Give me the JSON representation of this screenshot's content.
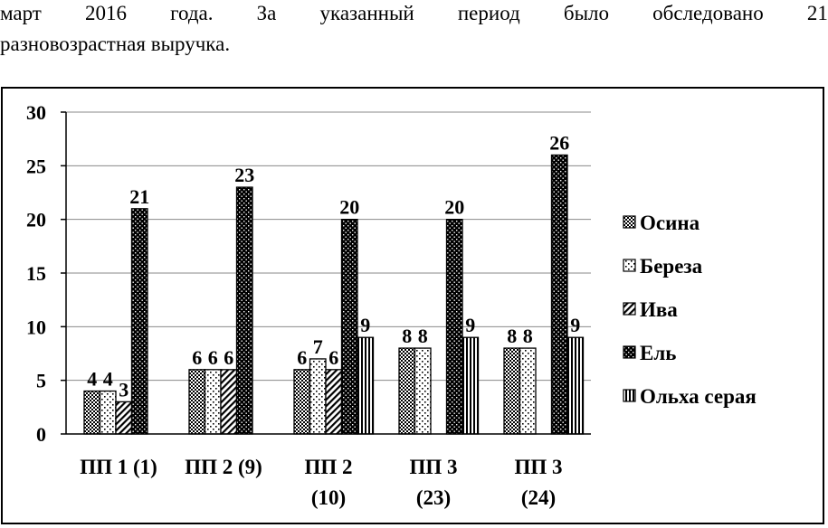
{
  "text": {
    "line1_words": [
      "март",
      "2016",
      "года.",
      "За",
      "указанный",
      "период",
      "было",
      "обследовано",
      "21"
    ],
    "line2": "разновозрастная выручка."
  },
  "chart_data": {
    "type": "bar",
    "categories": [
      "ПП 1 (1)",
      "ПП 2 (9)",
      "ПП 2 (10)",
      "ПП 3 (23)",
      "ПП 3 (24)"
    ],
    "category_lines": [
      [
        "ПП 1 (1)"
      ],
      [
        "ПП 2 (9)"
      ],
      [
        "ПП 2",
        "(10)"
      ],
      [
        "ПП 3",
        "(23)"
      ],
      [
        "ПП 3",
        "(24)"
      ]
    ],
    "series": [
      {
        "name": "Осина",
        "values": [
          4,
          6,
          6,
          8,
          8
        ],
        "pattern": "crosshatch"
      },
      {
        "name": "Береза",
        "values": [
          4,
          6,
          7,
          8,
          8
        ],
        "pattern": "dots-light"
      },
      {
        "name": "Ива",
        "values": [
          3,
          6,
          6,
          null,
          null
        ],
        "pattern": "diagonal"
      },
      {
        "name": "Ель",
        "values": [
          21,
          23,
          20,
          20,
          26
        ],
        "pattern": "dots-dark"
      },
      {
        "name": "Ольха серая",
        "values": [
          null,
          null,
          9,
          9,
          9
        ],
        "pattern": "vertical"
      }
    ],
    "ylim": [
      0,
      30
    ],
    "yticks": [
      0,
      5,
      10,
      15,
      20,
      25,
      30
    ],
    "grid": true,
    "legend_position": "right",
    "data_labels": true
  }
}
